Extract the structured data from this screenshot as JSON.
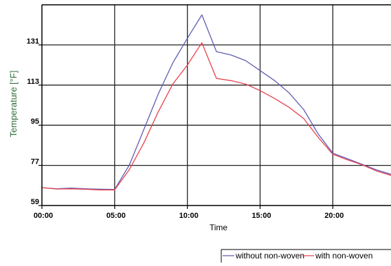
{
  "chart_data": {
    "type": "line",
    "title": "",
    "xlabel": "Time",
    "ylabel": "Temperature [°F]",
    "x_unit": "hours",
    "xlim": [
      0,
      24
    ],
    "ylim": [
      59,
      149
    ],
    "x_ticks": [
      {
        "value": 0,
        "label": "00:00"
      },
      {
        "value": 5,
        "label": "05:00"
      },
      {
        "value": 10,
        "label": "10:00"
      },
      {
        "value": 15,
        "label": "15:00"
      },
      {
        "value": 20,
        "label": "20:00"
      }
    ],
    "y_ticks": [
      {
        "value": 59,
        "label": "59"
      },
      {
        "value": 77,
        "label": "77"
      },
      {
        "value": 95,
        "label": "95"
      },
      {
        "value": 113,
        "label": "113"
      },
      {
        "value": 131,
        "label": "131"
      }
    ],
    "grid": true,
    "legend_position": "bottom-right",
    "x": [
      0,
      1,
      2,
      3,
      4,
      5,
      6,
      7,
      8,
      9,
      10,
      11,
      12,
      13,
      14,
      15,
      16,
      17,
      18,
      19,
      20,
      21,
      22,
      23,
      24
    ],
    "series": [
      {
        "name": "without non-woven",
        "color": "#5c5cb4",
        "values": [
          67,
          66.5,
          66.8,
          66.5,
          66.3,
          66.2,
          77,
          93,
          109,
          123,
          134,
          144.5,
          128,
          126.5,
          124,
          119.5,
          115,
          109.5,
          102,
          91,
          82.5,
          80,
          77.5,
          75,
          73
        ]
      },
      {
        "name": "with non-woven",
        "color": "#e8404e",
        "values": [
          67,
          66.4,
          66.5,
          66.3,
          66,
          66,
          75,
          87,
          101,
          113.5,
          122,
          132,
          116,
          115,
          113.5,
          110.5,
          107,
          103,
          98,
          89.5,
          82,
          79.5,
          77.3,
          74.5,
          72.5
        ]
      }
    ]
  }
}
